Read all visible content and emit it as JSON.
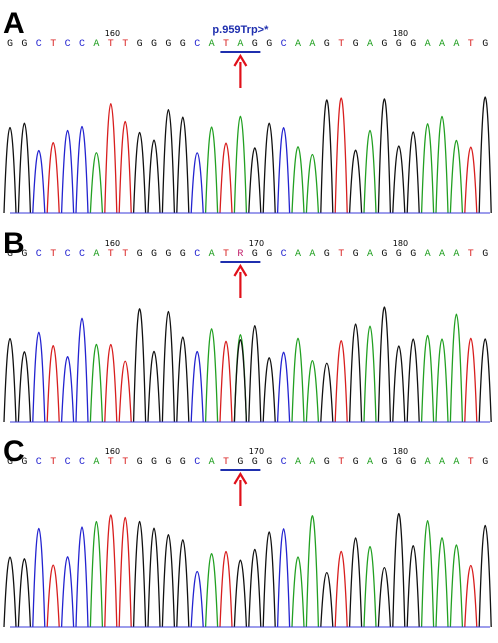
{
  "colors": {
    "A": "#22a022",
    "C": "#2323d0",
    "G": "#111111",
    "T": "#d81e1e",
    "R": "#c01f6a",
    "underline": "#1f2fae",
    "arrow": "#e0101a"
  },
  "panels": [
    {
      "letter": "A",
      "sequence": [
        "G",
        "G",
        "C",
        "T",
        "C",
        "C",
        "A",
        "T",
        "T",
        "G",
        "G",
        "G",
        "G",
        "C",
        "A",
        "T",
        "A",
        "G",
        "G",
        "C",
        "A",
        "A",
        "G",
        "T",
        "G",
        "A",
        "G",
        "G",
        "G",
        "A",
        "A",
        "A",
        "T",
        "G"
      ],
      "position_labels": [
        {
          "text": "160",
          "index": 7
        },
        {
          "text": "180",
          "index": 27
        }
      ],
      "mutation_label": "p.959Trp>*",
      "highlight_index": 16
    },
    {
      "letter": "B",
      "sequence": [
        "G",
        "G",
        "C",
        "T",
        "C",
        "C",
        "A",
        "T",
        "T",
        "G",
        "G",
        "G",
        "G",
        "C",
        "A",
        "T",
        "R",
        "G",
        "G",
        "C",
        "A",
        "A",
        "G",
        "T",
        "G",
        "A",
        "G",
        "G",
        "G",
        "A",
        "A",
        "A",
        "T",
        "G"
      ],
      "position_labels": [
        {
          "text": "160",
          "index": 7
        },
        {
          "text": "170",
          "index": 17
        },
        {
          "text": "180",
          "index": 27
        }
      ],
      "mutation_label": "",
      "highlight_index": 16
    },
    {
      "letter": "C",
      "sequence": [
        "G",
        "G",
        "C",
        "T",
        "C",
        "C",
        "A",
        "T",
        "T",
        "G",
        "G",
        "G",
        "G",
        "C",
        "A",
        "T",
        "G",
        "G",
        "G",
        "C",
        "A",
        "A",
        "G",
        "T",
        "G",
        "A",
        "G",
        "G",
        "G",
        "A",
        "A",
        "A",
        "T",
        "G"
      ],
      "position_labels": [
        {
          "text": "160",
          "index": 7
        },
        {
          "text": "170",
          "index": 17
        },
        {
          "text": "180",
          "index": 27
        }
      ],
      "mutation_label": "",
      "highlight_index": 16
    }
  ]
}
